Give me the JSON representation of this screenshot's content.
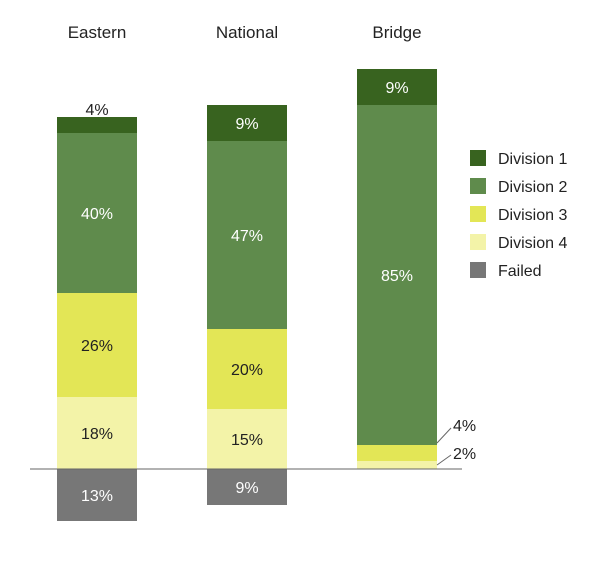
{
  "chart_data": {
    "type": "bar",
    "stacked": true,
    "diverging": true,
    "categories": [
      "Eastern",
      "National",
      "Bridge"
    ],
    "series": [
      {
        "name": "Division 1",
        "values": [
          4,
          9,
          9
        ],
        "color": "#38631f",
        "label_color": "#ffffff"
      },
      {
        "name": "Division 2",
        "values": [
          40,
          47,
          85
        ],
        "color": "#5f8b4c",
        "label_color": "#ffffff"
      },
      {
        "name": "Division 3",
        "values": [
          26,
          20,
          4
        ],
        "color": "#e3e656",
        "label_color": "#222222"
      },
      {
        "name": "Division 4",
        "values": [
          18,
          15,
          2
        ],
        "color": "#f3f3a8",
        "label_color": "#222222"
      },
      {
        "name": "Failed",
        "values": [
          13,
          9,
          0
        ],
        "color": "#777777",
        "label_color": "#ffffff",
        "below_baseline": true
      }
    ],
    "value_labels": [
      [
        "4%",
        "9%",
        "9%"
      ],
      [
        "40%",
        "47%",
        "85%"
      ],
      [
        "26%",
        "20%",
        "4%"
      ],
      [
        "18%",
        "15%",
        "2%"
      ],
      [
        "13%",
        "9%",
        ""
      ]
    ],
    "legend": {
      "position": "right",
      "order": [
        "Division 1",
        "Division 2",
        "Division 3",
        "Division 4",
        "Failed"
      ]
    },
    "grid": false
  }
}
